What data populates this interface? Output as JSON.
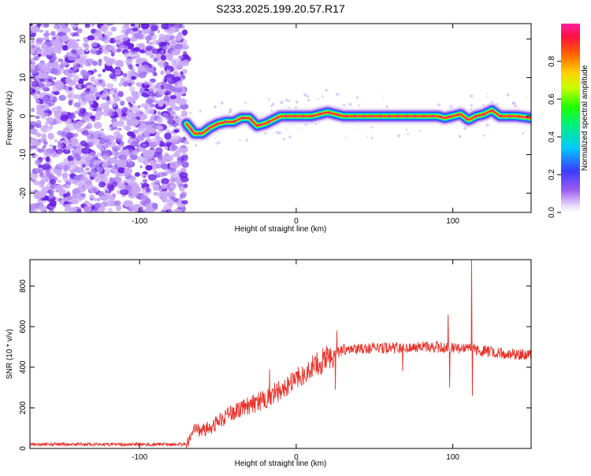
{
  "title": "S233.2025.199.20.57.R17",
  "colors": {
    "signal_line": "#e8322a",
    "scatter_dark": "#6a1ee6",
    "scatter_light": "#c9a8f7"
  },
  "chart_data": [
    {
      "type": "heatmap",
      "xlabel": "Height of straight line (km)",
      "ylabel": "Frequency (Hz)",
      "xlim": [
        -170,
        150
      ],
      "ylim": [
        -25,
        24
      ],
      "x_ticks": [
        -100,
        0,
        100
      ],
      "y_ticks": [
        -20,
        -10,
        0,
        10,
        20
      ],
      "grid": false,
      "noise_region_x": [
        -170,
        -70
      ],
      "colorbar": {
        "label": "Normalized spectral amplitude",
        "range": [
          0,
          1
        ],
        "ticks": [
          "0.0",
          "0.2",
          "0.4",
          "0.6",
          "0.8"
        ]
      },
      "ridge": {
        "x": [
          -70,
          -65,
          -60,
          -55,
          -50,
          -45,
          -40,
          -35,
          -30,
          -25,
          -20,
          -15,
          -10,
          -5,
          0,
          10,
          20,
          30,
          50,
          70,
          90,
          95,
          100,
          105,
          110,
          115,
          120,
          125,
          130,
          140,
          150
        ],
        "y": [
          -2,
          -4.5,
          -4.5,
          -3,
          -2,
          -1.5,
          -1.5,
          -0.5,
          -0.5,
          -2.5,
          -2,
          -1,
          0,
          0,
          0,
          0,
          1,
          0,
          0,
          0,
          0,
          -0.5,
          0,
          0.5,
          -1,
          0,
          0.5,
          1.5,
          0,
          0,
          -0.5
        ]
      }
    },
    {
      "type": "line",
      "xlabel": "Height of straight line (km)",
      "ylabel": "SNR (10 * v/v)",
      "xlim": [
        -170,
        150
      ],
      "ylim": [
        0,
        930
      ],
      "x_ticks": [
        -100,
        0,
        100
      ],
      "y_ticks": [
        0,
        200,
        400,
        600,
        800
      ],
      "grid": false,
      "trend": {
        "x": [
          -170,
          -70,
          -65,
          -60,
          -55,
          -50,
          -45,
          -40,
          -35,
          -30,
          -25,
          -20,
          -15,
          -10,
          -5,
          0,
          5,
          10,
          15,
          20,
          25,
          30,
          40,
          50,
          60,
          70,
          80,
          90,
          100,
          110,
          120,
          130,
          140,
          150
        ],
        "y": [
          20,
          20,
          90,
          90,
          100,
          130,
          155,
          180,
          200,
          210,
          225,
          245,
          265,
          290,
          315,
          340,
          365,
          395,
          420,
          445,
          470,
          485,
          495,
          495,
          495,
          498,
          500,
          500,
          495,
          490,
          480,
          470,
          465,
          460
        ]
      },
      "spikes": [
        {
          "x": 112,
          "y": 930
        },
        {
          "x": 112.5,
          "y": 260
        },
        {
          "x": 98,
          "y": 300
        },
        {
          "x": 97,
          "y": 660
        },
        {
          "x": 25,
          "y": 290
        },
        {
          "x": 26,
          "y": 580
        },
        {
          "x": -17,
          "y": 390
        },
        {
          "x": 68,
          "y": 380
        }
      ]
    }
  ]
}
